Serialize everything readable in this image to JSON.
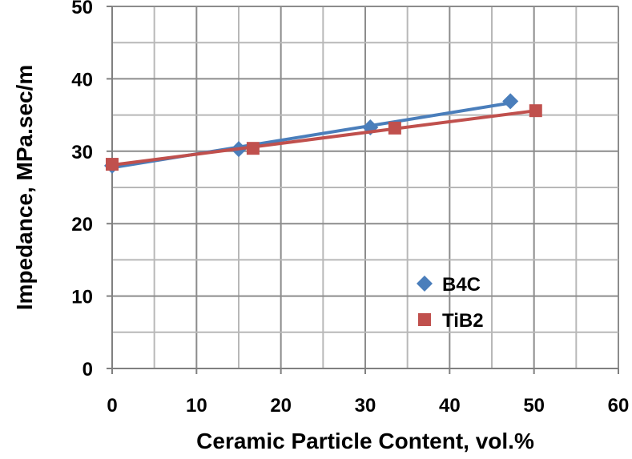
{
  "chart_data": {
    "type": "scatter",
    "title": "",
    "xlabel": "Ceramic Particle Content, vol.%",
    "ylabel": "Impedance, MPa.sec/m",
    "xlim": [
      0,
      60
    ],
    "ylim": [
      0,
      50
    ],
    "xticks": [
      "0",
      "10",
      "20",
      "30",
      "40",
      "50",
      "60"
    ],
    "yticks": [
      "0",
      "10",
      "20",
      "30",
      "40",
      "50"
    ],
    "grid": true,
    "legend_position": "lower-right",
    "series": [
      {
        "name": "B4C",
        "marker": "diamond",
        "color": "#4A7EBB",
        "trendline": "linear",
        "x": [
          0,
          15.0,
          30.6,
          47.2
        ],
        "y": [
          28.0,
          30.3,
          33.3,
          36.9
        ]
      },
      {
        "name": "TiB2",
        "marker": "square",
        "color": "#C0504D",
        "trendline": "linear",
        "x": [
          0,
          16.7,
          33.5,
          50.2
        ],
        "y": [
          28.2,
          30.4,
          33.2,
          35.6
        ]
      }
    ]
  }
}
